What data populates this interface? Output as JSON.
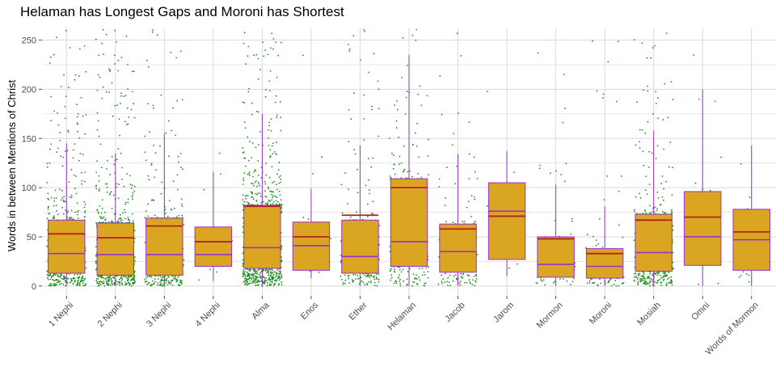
{
  "chart_data": {
    "type": "box",
    "title": "Helaman has Longest Gaps and Moroni has Shortest",
    "xlabel": "",
    "ylabel": "Words in between Mentions of Christ",
    "ylim": [
      -10,
      262
    ],
    "y_ticks": [
      0,
      50,
      100,
      150,
      200,
      250
    ],
    "grid": true,
    "categories": [
      "1 Nephi",
      "2 Nephi",
      "3 Nephi",
      "4 Nephi",
      "Alma",
      "Enos",
      "Ether",
      "Helaman",
      "Jacob",
      "Jarom",
      "Mormon",
      "Moroni",
      "Mosiah",
      "Omni",
      "Words of Mormon"
    ],
    "boxes": [
      {
        "q1": 13,
        "median": 33,
        "q3": 67,
        "whisker_low": 0,
        "whisker_high": 145,
        "mean": 53,
        "points": 520
      },
      {
        "q1": 11,
        "median": 32,
        "q3": 64,
        "whisker_low": 0,
        "whisker_high": 135,
        "mean": 49,
        "points": 640
      },
      {
        "q1": 11,
        "median": 32,
        "q3": 69,
        "whisker_low": 0,
        "whisker_high": 155,
        "mean": 61,
        "points": 340
      },
      {
        "q1": 20,
        "median": 32,
        "q3": 60,
        "whisker_low": 5,
        "whisker_high": 116,
        "mean": 45,
        "points": 16
      },
      {
        "q1": 18,
        "median": 39,
        "q3": 82,
        "whisker_low": 0,
        "whisker_high": 175,
        "mean": 81,
        "points": 900
      },
      {
        "q1": 16,
        "median": 41,
        "q3": 65,
        "whisker_low": 8,
        "whisker_high": 99,
        "mean": 50,
        "points": 12
      },
      {
        "q1": 13,
        "median": 30,
        "q3": 67,
        "whisker_low": 0,
        "whisker_high": 143,
        "mean": 72,
        "points": 240
      },
      {
        "q1": 20,
        "median": 45,
        "q3": 109,
        "whisker_low": 0,
        "whisker_high": 235,
        "mean": 100,
        "points": 230
      },
      {
        "q1": 14,
        "median": 35,
        "q3": 63,
        "whisker_low": 0,
        "whisker_high": 134,
        "mean": 58,
        "points": 140
      },
      {
        "q1": 27,
        "median": 76,
        "q3": 105,
        "whisker_low": 10,
        "whisker_high": 137,
        "mean": 71,
        "points": 5
      },
      {
        "q1": 9,
        "median": 22,
        "q3": 50,
        "whisker_low": 0,
        "whisker_high": 103,
        "mean": 48,
        "points": 80
      },
      {
        "q1": 8,
        "median": 20,
        "q3": 38,
        "whisker_low": 0,
        "whisker_high": 81,
        "mean": 33,
        "points": 80
      },
      {
        "q1": 15,
        "median": 34,
        "q3": 73,
        "whisker_low": 0,
        "whisker_high": 158,
        "mean": 67,
        "points": 460
      },
      {
        "q1": 21,
        "median": 50,
        "q3": 96,
        "whisker_low": 0,
        "whisker_high": 200,
        "mean": 70,
        "points": 14
      },
      {
        "q1": 16,
        "median": 47,
        "q3": 78,
        "whisker_low": 0,
        "whisker_high": 143,
        "mean": 55,
        "points": 16
      }
    ],
    "colors": {
      "box_fill": "#DAA520",
      "box_border": "#9932CC",
      "median_line": "#9932CC",
      "mean_line": "#B22222",
      "points": "#228B22",
      "grid": "#d9d9d9"
    }
  }
}
